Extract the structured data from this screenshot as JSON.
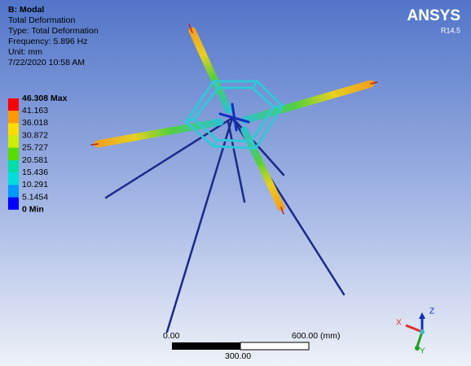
{
  "header": {
    "title": "B: Modal",
    "lines": [
      "Total Deformation",
      "Type: Total Deformation",
      "Frequency: 5.896 Hz",
      "Unit: mm",
      "7/22/2020 10:58 AM"
    ]
  },
  "legend": {
    "labels": [
      "46.308 Max",
      "41.163",
      "36.018",
      "30.872",
      "25.727",
      "20.581",
      "15.436",
      "10.291",
      "5.1454",
      "0 Min"
    ],
    "colors": [
      "#ff0000",
      "#ff9900",
      "#ffdd00",
      "#ccee00",
      "#55dd00",
      "#00ddaa",
      "#00dddd",
      "#0099ff",
      "#0000ff"
    ]
  },
  "logo": {
    "name": "ANSYS",
    "version": "R14.5"
  },
  "scale": {
    "start": "0.00",
    "end": "600.00 (mm)",
    "mid": "300.00"
  },
  "triad": {
    "x": "X",
    "y": "Y",
    "z": "Z"
  }
}
